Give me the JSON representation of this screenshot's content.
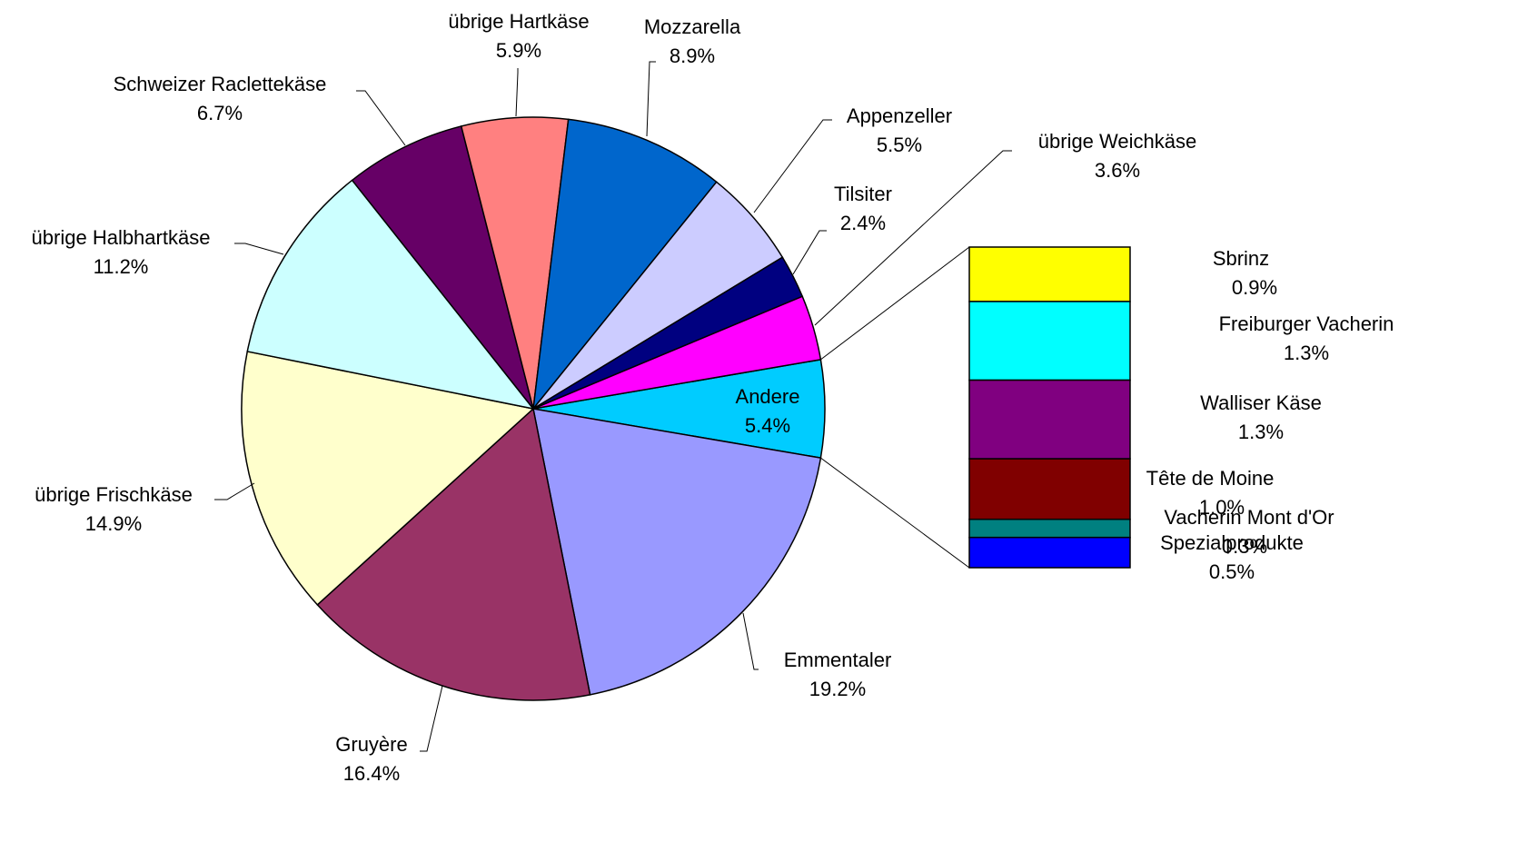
{
  "chart_data": {
    "type": "pie",
    "categories": [
      "Andere",
      "Emmentaler",
      "Gruyère",
      "übrige Frischkäse",
      "übrige Halbhartkäse",
      "Schweizer Raclettekäse",
      "übrige Hartkäse",
      "Mozzarella",
      "Appenzeller",
      "Tilsiter",
      "übrige Weichkäse"
    ],
    "values": [
      5.4,
      19.2,
      16.4,
      14.9,
      11.2,
      6.7,
      5.9,
      8.9,
      5.5,
      2.4,
      3.6
    ],
    "value_labels": [
      "5.4%",
      "19.2%",
      "16.4%",
      "14.9%",
      "11.2%",
      "6.7%",
      "5.9%",
      "8.9%",
      "5.5%",
      "2.4%",
      "3.6%"
    ],
    "colors": [
      "#00ccff",
      "#9999ff",
      "#993366",
      "#ffffcc",
      "#ccffff",
      "#660066",
      "#ff8080",
      "#0066cc",
      "#ccccff",
      "#000080",
      "#ff00ff"
    ],
    "breakdown": {
      "categories": [
        "Sbrinz",
        "Freiburger Vacherin",
        "Walliser Käse",
        "Tête de Moine",
        "Vacherin Mont d'Or",
        "Spezialprodukte"
      ],
      "values": [
        0.9,
        1.3,
        1.3,
        1.0,
        0.3,
        0.5
      ],
      "value_labels": [
        "0.9%",
        "1.3%",
        "1.3%",
        "1.0%",
        "0.3%",
        "0.5%"
      ],
      "colors": [
        "#ffff00",
        "#00ffff",
        "#800080",
        "#800000",
        "#008080",
        "#0000ff"
      ]
    }
  }
}
